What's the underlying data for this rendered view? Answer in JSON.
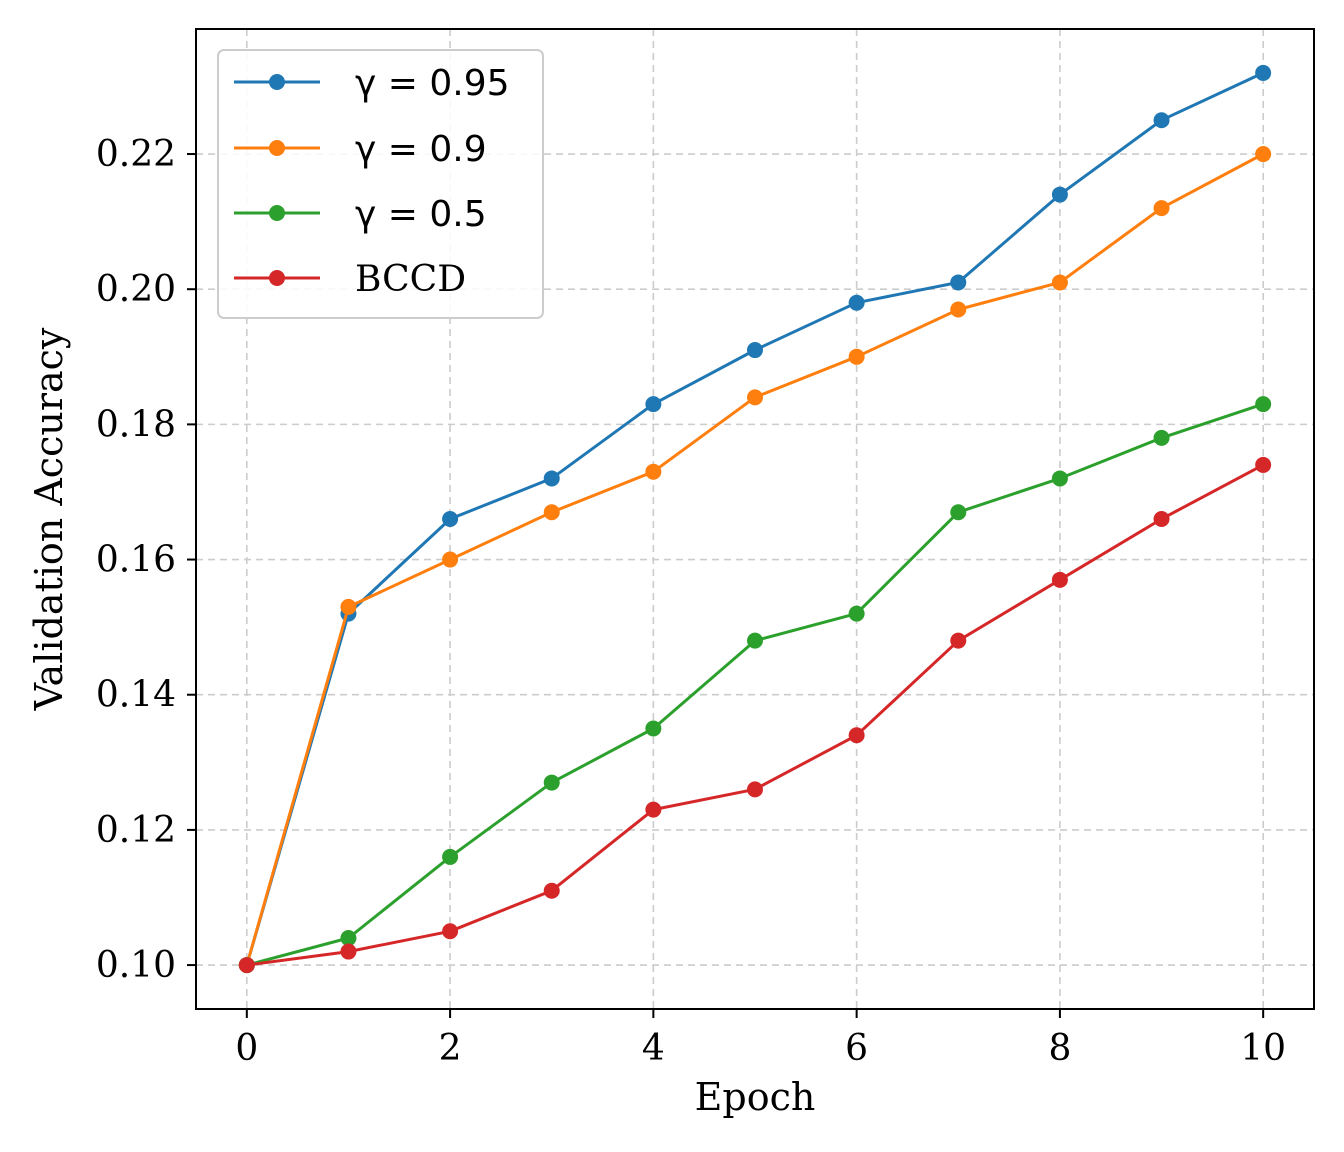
{
  "chart_data": {
    "type": "line",
    "xlabel": "Epoch",
    "ylabel": "Validation Accuracy",
    "xlim": [
      -0.5,
      10.5
    ],
    "ylim": [
      0.0935,
      0.2385
    ],
    "xticks": [
      0,
      2,
      4,
      6,
      8,
      10
    ],
    "xtick_labels": [
      "0",
      "2",
      "4",
      "6",
      "8",
      "10"
    ],
    "yticks": [
      0.1,
      0.12,
      0.14,
      0.16,
      0.18,
      0.2,
      0.22
    ],
    "ytick_labels": [
      "0.10",
      "0.12",
      "0.14",
      "0.16",
      "0.18",
      "0.20",
      "0.22"
    ],
    "grid": true,
    "legend_position": "top-left",
    "x": [
      0,
      1,
      2,
      3,
      4,
      5,
      6,
      7,
      8,
      9,
      10
    ],
    "series": [
      {
        "name": "γ = 0.95",
        "color": "#1f77b4",
        "values": [
          0.1,
          0.152,
          0.166,
          0.172,
          0.183,
          0.191,
          0.198,
          0.201,
          0.214,
          0.225,
          0.232
        ]
      },
      {
        "name": "γ = 0.9",
        "color": "#ff7f0e",
        "values": [
          0.1,
          0.153,
          0.16,
          0.167,
          0.173,
          0.184,
          0.19,
          0.197,
          0.201,
          0.212,
          0.22
        ]
      },
      {
        "name": "γ = 0.5",
        "color": "#2ca02c",
        "values": [
          0.1,
          0.104,
          0.116,
          0.127,
          0.135,
          0.148,
          0.152,
          0.167,
          0.172,
          0.178,
          0.183
        ]
      },
      {
        "name": "BCCD",
        "color": "#d62728",
        "values": [
          0.1,
          0.102,
          0.105,
          0.111,
          0.123,
          0.126,
          0.134,
          0.148,
          0.157,
          0.166,
          0.174
        ]
      }
    ]
  }
}
